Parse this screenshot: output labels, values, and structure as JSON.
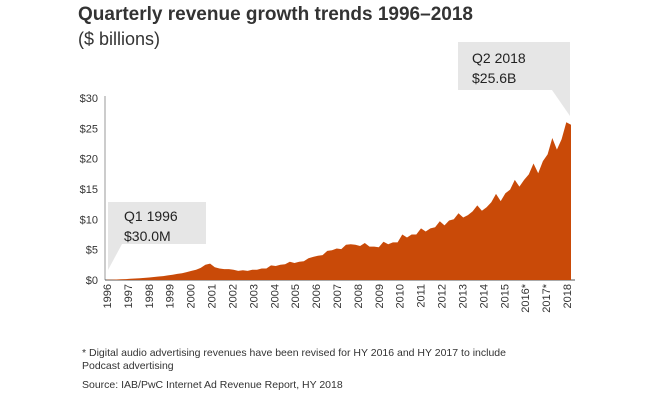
{
  "title": "Quarterly revenue growth trends 1996–2018",
  "subtitle": "($ billions)",
  "callouts": {
    "q1": {
      "line1": "Q1 1996",
      "line2": "$30.0M"
    },
    "q2": {
      "line1": "Q2 2018",
      "line2": "$25.6B"
    }
  },
  "footnote": "* Digital audio advertising revenues have been revised for HY 2016 and HY 2017 to include Podcast advertising",
  "source": "Source: IAB/PwC Internet Ad Revenue Report, HY 2018",
  "colors": {
    "area": "#c94a08",
    "callout_bg": "#e6e6e6"
  },
  "chart_data": {
    "type": "area",
    "xlabel": "",
    "ylabel": "",
    "ylim": [
      0,
      30
    ],
    "y_ticks": [
      "$0",
      "$5",
      "$10",
      "$15",
      "$20",
      "$25",
      "$30"
    ],
    "x_tick_labels": [
      "1996",
      "1997",
      "1998",
      "1999",
      "2000",
      "2001",
      "2002",
      "2003",
      "2004",
      "2005",
      "2006",
      "2007",
      "2008",
      "2009",
      "2010",
      "2011",
      "2012",
      "2013",
      "2014",
      "2015",
      "2016*",
      "2017*",
      "2018"
    ],
    "grid": false,
    "series": [
      {
        "values": [
          0.03,
          0.05,
          0.08,
          0.12,
          0.15,
          0.2,
          0.25,
          0.3,
          0.35,
          0.42,
          0.5,
          0.58,
          0.65,
          0.75,
          0.85,
          1.0,
          1.1,
          1.3,
          1.5,
          1.7,
          2.0,
          2.5,
          2.7,
          2.1,
          1.9,
          1.8,
          1.8,
          1.7,
          1.5,
          1.6,
          1.5,
          1.7,
          1.7,
          1.9,
          1.9,
          2.4,
          2.3,
          2.5,
          2.6,
          3.0,
          2.8,
          3.0,
          3.1,
          3.6,
          3.8,
          4.0,
          4.1,
          4.8,
          4.9,
          5.2,
          5.1,
          5.8,
          5.9,
          5.8,
          5.6,
          6.1,
          5.5,
          5.5,
          5.4,
          6.3,
          5.9,
          6.2,
          6.2,
          7.5,
          7.0,
          7.5,
          7.5,
          8.5,
          8.0,
          8.5,
          8.7,
          9.7,
          9.0,
          9.8,
          10.0,
          11.0,
          10.3,
          10.7,
          11.3,
          12.3,
          11.4,
          12.0,
          12.8,
          14.2,
          13.0,
          14.3,
          14.9,
          16.5,
          15.4,
          16.5,
          17.4,
          19.2,
          17.6,
          19.6,
          20.7,
          23.4,
          21.5,
          23.2,
          26.0,
          25.6
        ]
      }
    ]
  }
}
